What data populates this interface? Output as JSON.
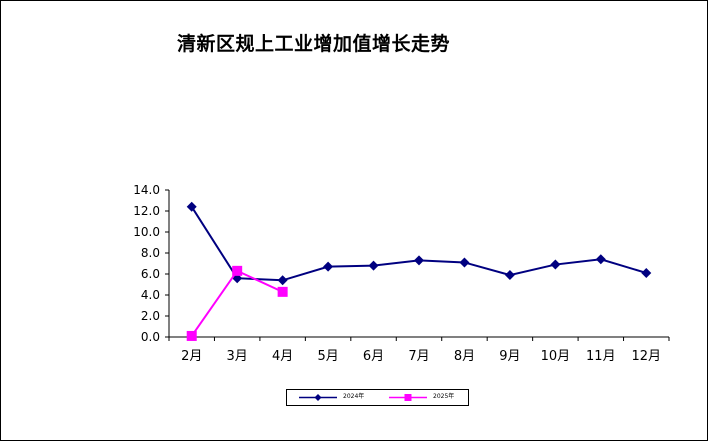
{
  "chart_data": {
    "type": "line",
    "title": "清新区规上工业增加值增长走势",
    "categories": [
      "2月",
      "3月",
      "4月",
      "5月",
      "6月",
      "7月",
      "8月",
      "9月",
      "10月",
      "11月",
      "12月"
    ],
    "y_ticks": [
      "0.0",
      "2.0",
      "4.0",
      "6.0",
      "8.0",
      "10.0",
      "12.0",
      "14.0"
    ],
    "ylim": [
      0,
      14
    ],
    "grid": false,
    "legend_position": "bottom",
    "series": [
      {
        "name": "2024年",
        "color": "#000080",
        "marker": "diamond",
        "values": [
          12.4,
          5.6,
          5.4,
          6.7,
          6.8,
          7.3,
          7.1,
          5.9,
          6.9,
          7.4,
          6.1
        ]
      },
      {
        "name": "2025年",
        "color": "#FF00FF",
        "marker": "square",
        "values": [
          0.1,
          6.3,
          4.3,
          null,
          null,
          null,
          null,
          null,
          null,
          null,
          null
        ]
      }
    ]
  }
}
